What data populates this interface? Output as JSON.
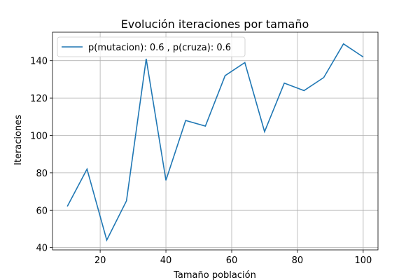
{
  "chart_data": {
    "type": "line",
    "title": "Evolución iteraciones por tamaño",
    "xlabel": "Tamaño población",
    "ylabel": "Iteraciones",
    "xlim": [
      5.5,
      104.5
    ],
    "ylim": [
      38.75,
      155.25
    ],
    "xticks": [
      20,
      40,
      60,
      80,
      100
    ],
    "yticks": [
      40,
      60,
      80,
      100,
      120,
      140
    ],
    "grid": true,
    "legend_position": "upper-left",
    "series": [
      {
        "name": "p(mutacion): 0.6 , p(cruza): 0.6",
        "color": "#1f77b4",
        "x": [
          10,
          16,
          22,
          28,
          34,
          40,
          46,
          52,
          58,
          64,
          70,
          76,
          82,
          88,
          94,
          100
        ],
        "y": [
          62,
          82,
          44,
          65,
          141,
          76,
          108,
          105,
          132,
          139,
          102,
          128,
          124,
          131,
          149,
          142
        ]
      }
    ]
  }
}
